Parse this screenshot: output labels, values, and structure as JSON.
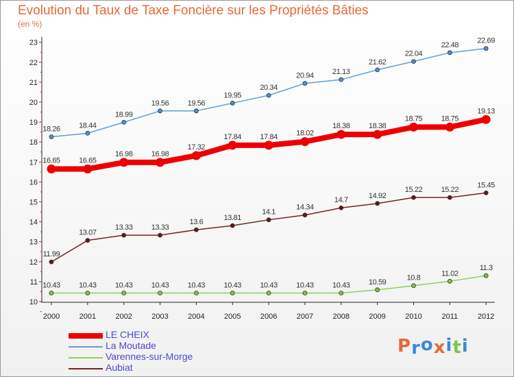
{
  "title": "Evolution du Taux de Taxe Foncière sur les Propriétés Bâties",
  "unit": "(en %)",
  "brand": "Proxiti",
  "chart_data": {
    "type": "line",
    "title": "Evolution du Taux de Taxe Foncière sur les Propriétés Bâties",
    "ylabel": "(en %)",
    "xlabel": "",
    "ylim": [
      10,
      23
    ],
    "y_ticks": [
      10,
      11,
      12,
      13,
      14,
      15,
      16,
      17,
      18,
      19,
      20,
      21,
      22,
      23
    ],
    "grid": false,
    "legend_position": "bottom-left",
    "categories": [
      "2000",
      "2001",
      "2002",
      "2003",
      "2004",
      "2005",
      "2006",
      "2007",
      "2008",
      "2009",
      "2010",
      "2011",
      "2012"
    ],
    "series": [
      {
        "name": "La Moutade",
        "color": "#5e9fd8",
        "point_color": "#4a90d9",
        "values": [
          18.26,
          18.44,
          18.99,
          19.56,
          19.56,
          19.95,
          20.34,
          20.94,
          21.13,
          21.62,
          22.04,
          22.48,
          22.69
        ],
        "labels": [
          "18.26",
          "18.44",
          "18.99",
          "19.56",
          "19.56",
          "19.95",
          "20.34",
          "20.94",
          "21.13",
          "21.62",
          "22.04",
          "22.48",
          "22.69"
        ]
      },
      {
        "name": "Aubiat",
        "color": "#7a2020",
        "point_color": "#6a1616",
        "values": [
          11.99,
          13.07,
          13.33,
          13.33,
          13.6,
          13.81,
          14.1,
          14.34,
          14.7,
          14.92,
          15.22,
          15.22,
          15.45
        ],
        "labels": [
          "11.99",
          "13.07",
          "13.33",
          "13.33",
          "13.6",
          "13.81",
          "14.1",
          "14.34",
          "14.7",
          "14.92",
          "15.22",
          "15.22",
          "15.45"
        ]
      },
      {
        "name": "Varennes-sur-Morge",
        "color": "#8fd05a",
        "point_color": "#7cc840",
        "values": [
          10.43,
          10.43,
          10.43,
          10.43,
          10.43,
          10.43,
          10.43,
          10.43,
          10.43,
          10.59,
          10.8,
          11.02,
          11.3
        ],
        "labels": [
          "10.43",
          "10.43",
          "10.43",
          "10.43",
          "10.43",
          "10.43",
          "10.43",
          "10.43",
          "10.43",
          "10.59",
          "10.8",
          "11.02",
          "11.3"
        ]
      },
      {
        "name": "LE CHEIX",
        "color": "#ee0000",
        "point_color": "#ee0000",
        "values": [
          16.65,
          16.65,
          16.98,
          16.98,
          17.32,
          17.84,
          17.84,
          18.02,
          18.38,
          18.38,
          18.75,
          18.75,
          19.13
        ],
        "labels": [
          "16.65",
          "16.65",
          "16.98",
          "16.98",
          "17.32",
          "17.84",
          "17.84",
          "18.02",
          "18.38",
          "18.38",
          "18.75",
          "18.75",
          "19.13"
        ]
      }
    ],
    "legend": [
      {
        "name": "LE CHEIX",
        "color": "#ee0000"
      },
      {
        "name": "La Moutade",
        "color": "#5e9fd8"
      },
      {
        "name": "Varennes-sur-Morge",
        "color": "#8fd05a"
      },
      {
        "name": "Aubiat",
        "color": "#7a2020"
      }
    ]
  }
}
